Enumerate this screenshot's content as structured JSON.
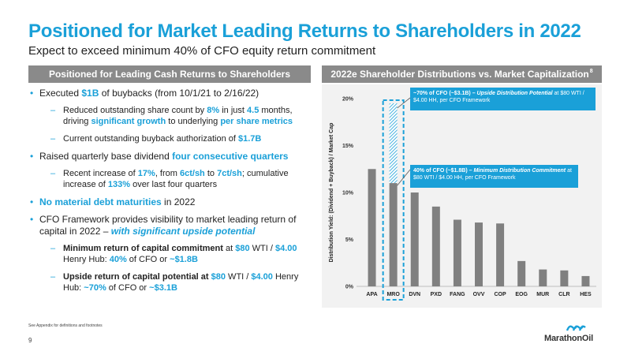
{
  "header": {
    "title": "Positioned for Market Leading Returns to Shareholders in 2022",
    "subtitle": "Expect to exceed minimum 40% of CFO equity return commitment"
  },
  "left_panel": {
    "heading": "Positioned for Leading Cash Returns to Shareholders",
    "bullet1": {
      "pre": "Executed ",
      "h1": "$1B",
      "post": " of buybacks (from 10/1/21 to 2/16/22)"
    },
    "sub1a": {
      "pre": "Reduced outstanding share count by ",
      "h1": "8%",
      "mid1": " in just ",
      "h2": "4.5",
      "mid2": " months, driving ",
      "h3": "significant growth",
      "mid3": " to underlying ",
      "h4": "per share metrics"
    },
    "sub1b": {
      "pre": "Current outstanding buyback authorization of ",
      "h1": "$1.7B"
    },
    "bullet2": {
      "pre": "Raised quarterly base dividend ",
      "h1": "four consecutive quarters"
    },
    "sub2a": {
      "pre": "Recent increase of ",
      "h1": "17%",
      "mid1": ", from ",
      "h2": "6ct/sh",
      "mid2": " to ",
      "h3": "7ct/sh",
      "mid3": "; cumulative increase of ",
      "h4": "133%",
      "post": " over last four quarters"
    },
    "bullet3": {
      "h1": "No material debt maturities",
      "post": " in 2022"
    },
    "bullet4": {
      "pre": "CFO Framework provides visibility to market leading return of capital in 2022 – ",
      "h1": "with significant upside potential"
    },
    "sub4a": {
      "b1": "Minimum return of capital commitment",
      "t1": " at ",
      "h1": "$80",
      "t2": " WTI / ",
      "h2": "$4.00",
      "t3": " Henry Hub: ",
      "h3": "40%",
      "t4": " of CFO or ",
      "h4": "~$1.8B"
    },
    "sub4b": {
      "b1": "Upside return of capital potential at ",
      "h1": "$80",
      "t2": " WTI / ",
      "h2": "$4.00",
      "t3": " Henry Hub: ",
      "h3": "~70%",
      "t4": " of CFO or ",
      "h4": "~$3.1B"
    }
  },
  "right_panel": {
    "heading": "2022e Shareholder Distributions vs. Market Capitalization",
    "heading_sup": "8",
    "callout_top": {
      "b": "~70% of CFO (~$3.1B) – ",
      "i": "Upside Distribution Potential",
      "rest": " at $80 WTI / $4.00 HH, per CFO Framework"
    },
    "callout_mid": {
      "b": "40% of CFO (~$1.8B) – ",
      "i": "Minimum Distribution Commitment",
      "rest": " at $80 WTI / $4.00 HH, per CFO Framework"
    }
  },
  "chart_data": {
    "type": "bar",
    "ylabel": "Distribution Yield: (Dividend + Buyback) / Market Cap",
    "ylim": [
      0,
      20
    ],
    "yticks": [
      0,
      5,
      10,
      15,
      20
    ],
    "ytick_labels": [
      "0%",
      "5%",
      "10%",
      "15%",
      "20%"
    ],
    "categories": [
      "APA",
      "MRO",
      "DVN",
      "PXD",
      "FANG",
      "OVV",
      "COP",
      "EOG",
      "MUR",
      "CLR",
      "HES"
    ],
    "values": [
      12.5,
      11.0,
      10.0,
      8.5,
      7.1,
      6.8,
      6.7,
      2.7,
      1.8,
      1.7,
      1.1
    ],
    "upside": {
      "category": "MRO",
      "value": 19.5
    },
    "grid": false,
    "colors": {
      "bar": "#808080",
      "upside_hatch": "#1aa0d8",
      "highlight_box": "#1aa0d8"
    }
  },
  "footer": {
    "footnote": "See Appendix for definitions and footnotes",
    "page": "9",
    "logo_text": "MarathonOil"
  }
}
